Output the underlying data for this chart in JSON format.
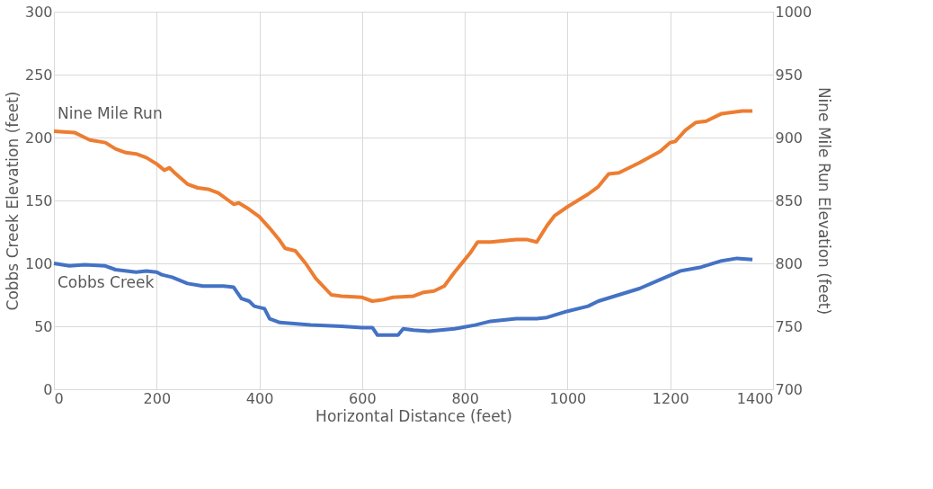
{
  "chart_data": {
    "type": "line",
    "xlabel": "Horizontal Distance (feet)",
    "ylabel": "Cobbs Creek Elevation (feet)",
    "y2label": "Nine Mile Run Elevation (feet)",
    "xlim": [
      0,
      1400
    ],
    "xticks": [
      0,
      200,
      400,
      600,
      800,
      1000,
      1200,
      1400
    ],
    "ylim": [
      0,
      300
    ],
    "yticks": [
      0,
      50,
      100,
      150,
      200,
      250,
      300
    ],
    "y2lim": [
      700,
      1000
    ],
    "y2ticks": [
      700,
      750,
      800,
      850,
      900,
      950,
      1000
    ],
    "grid": true,
    "marker": "none",
    "line_style": "solid",
    "series": [
      {
        "name": "Cobbs Creek",
        "color": "#4472c4",
        "x": [
          0,
          30,
          60,
          100,
          120,
          160,
          180,
          200,
          210,
          230,
          260,
          290,
          330,
          350,
          365,
          380,
          390,
          410,
          420,
          440,
          500,
          560,
          600,
          620,
          630,
          660,
          670,
          680,
          700,
          730,
          780,
          820,
          850,
          900,
          940,
          960,
          1000,
          1040,
          1060,
          1100,
          1140,
          1180,
          1220,
          1260,
          1300,
          1330,
          1360
        ],
        "values": [
          100,
          98,
          99,
          98,
          95,
          93,
          94,
          93,
          91,
          89,
          84,
          82,
          82,
          81,
          72,
          70,
          66,
          64,
          56,
          53,
          51,
          50,
          49,
          49,
          43,
          43,
          43,
          48,
          47,
          46,
          48,
          51,
          54,
          56,
          56,
          57,
          62,
          66,
          70,
          75,
          80,
          87,
          94,
          97,
          102,
          104,
          103
        ]
      },
      {
        "name": "Nine Mile Run",
        "color": "#ed7d31",
        "axis": "y2",
        "x": [
          0,
          40,
          60,
          70,
          100,
          120,
          140,
          160,
          180,
          200,
          215,
          225,
          235,
          260,
          280,
          300,
          320,
          340,
          350,
          360,
          380,
          400,
          420,
          440,
          450,
          470,
          490,
          510,
          540,
          560,
          600,
          620,
          640,
          660,
          700,
          720,
          740,
          760,
          780,
          810,
          825,
          850,
          900,
          920,
          940,
          960,
          975,
          1000,
          1040,
          1060,
          1080,
          1100,
          1140,
          1180,
          1200,
          1210,
          1230,
          1250,
          1270,
          1300,
          1340,
          1360
        ],
        "values": [
          905,
          904,
          900,
          898,
          896,
          891,
          888,
          887,
          884,
          879,
          874,
          876,
          872,
          863,
          860,
          859,
          856,
          850,
          847,
          848,
          843,
          837,
          828,
          818,
          812,
          810,
          800,
          788,
          775,
          774,
          773,
          770,
          771,
          773,
          774,
          777,
          778,
          782,
          793,
          808,
          817,
          817,
          819,
          819,
          817,
          830,
          838,
          845,
          855,
          861,
          871,
          872,
          880,
          889,
          896,
          897,
          906,
          912,
          913,
          919,
          921,
          921
        ]
      }
    ]
  }
}
